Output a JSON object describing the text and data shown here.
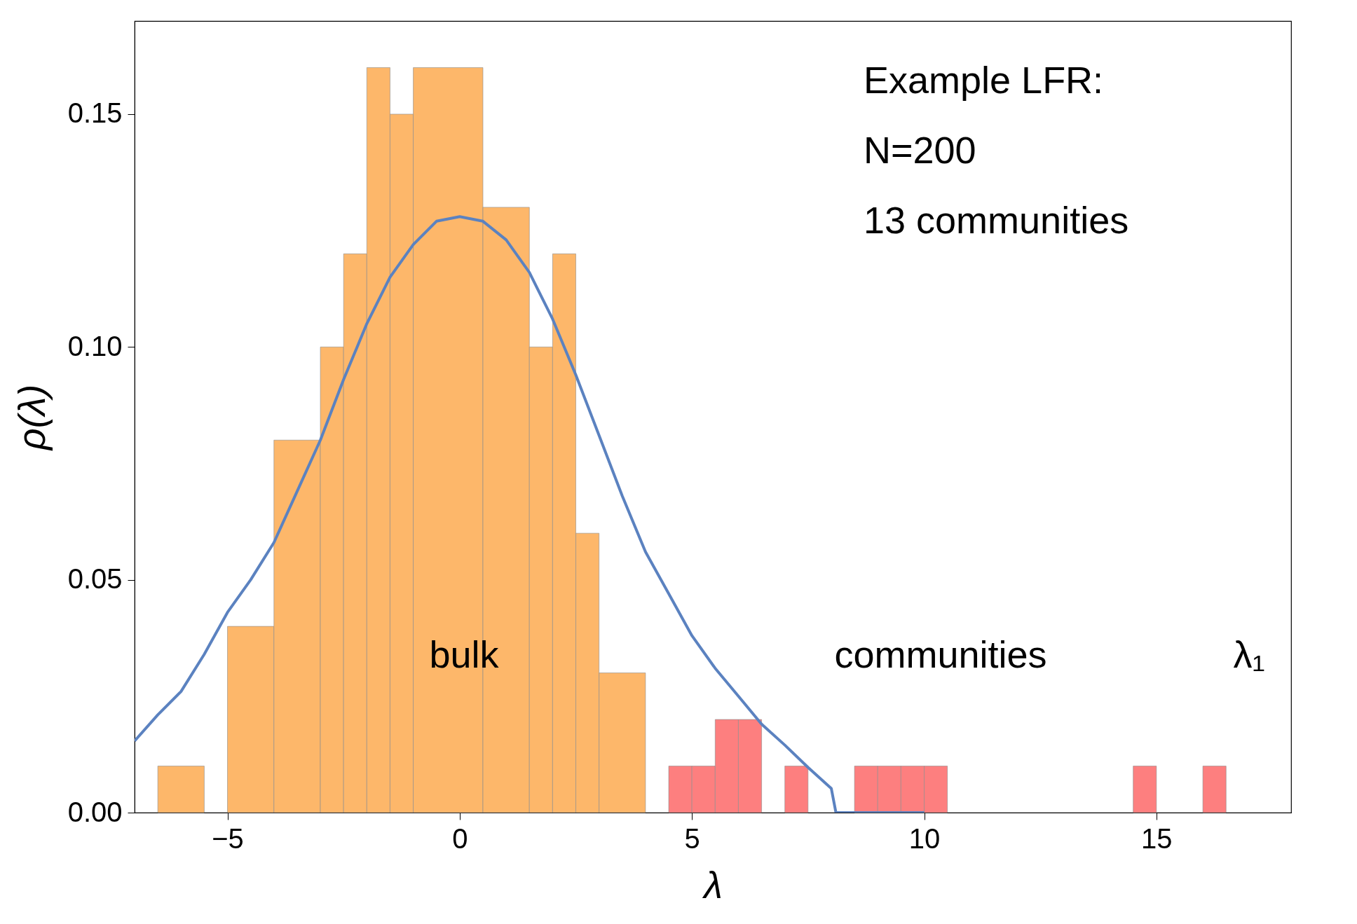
{
  "chart_data": {
    "type": "histogram",
    "xlabel": "λ",
    "ylabel": "ρ(λ)",
    "xlim": [
      -7,
      17.9
    ],
    "ylim": [
      0,
      0.17
    ],
    "xticks": [
      {
        "value": -5,
        "label": "−5"
      },
      0,
      5,
      10,
      15
    ],
    "yticks": [
      {
        "value": 0,
        "label": "0.00"
      },
      0.05,
      {
        "value": 0.1,
        "label": "0.10"
      },
      0.15
    ],
    "grid": false,
    "series": [
      {
        "color": "#fdb76a",
        "bins": [
          -6.5,
          -5.5,
          -5,
          -4,
          -3,
          -2.5,
          -2,
          -1.5,
          -1,
          0.5,
          1.5,
          2,
          2.5,
          3,
          4
        ],
        "values": [
          0.01,
          null,
          0.04,
          0.08,
          0.1,
          0.12,
          0.16,
          0.15,
          0.16,
          0.13,
          0.1,
          0.12,
          0.06,
          0.03
        ]
      },
      {
        "color": "#fd7f7f",
        "bins": [
          4.5,
          5,
          5.5,
          6,
          6.5,
          7,
          7.5,
          8.5,
          9,
          9.5,
          10,
          10.5,
          14.5,
          15,
          16,
          16.5
        ],
        "values": [
          0.01,
          0.01,
          0.02,
          0.02,
          null,
          0.01,
          null,
          0.01,
          0.01,
          0.01,
          0.01,
          null,
          0.01,
          null,
          0.01
        ]
      },
      {
        "type": "line",
        "color": "#5b82c0",
        "line_style": "solid",
        "x": [
          -7,
          -6.5,
          -6,
          -5.5,
          -5,
          -4.5,
          -4,
          -3.5,
          -3,
          -2.5,
          -2,
          -1.5,
          -1,
          -0.5,
          0,
          0.5,
          1,
          1.5,
          2,
          2.5,
          3,
          3.5,
          4,
          4.5,
          5,
          5.5,
          6,
          6.5,
          7,
          7.5,
          8,
          8.1,
          9,
          10
        ],
        "values": [
          0.0154,
          0.021,
          0.026,
          0.034,
          0.043,
          0.05,
          0.058,
          0.069,
          0.08,
          0.093,
          0.105,
          0.115,
          0.122,
          0.127,
          0.128,
          0.127,
          0.123,
          0.116,
          0.106,
          0.094,
          0.081,
          0.068,
          0.056,
          0.047,
          0.038,
          0.031,
          0.025,
          0.019,
          0.0145,
          0.0097,
          0.0052,
          0,
          0,
          0
        ]
      }
    ],
    "annotations": [
      "Example LFR:",
      "N=200",
      "13 communities",
      "bulk",
      "communities",
      "λ₁"
    ]
  }
}
